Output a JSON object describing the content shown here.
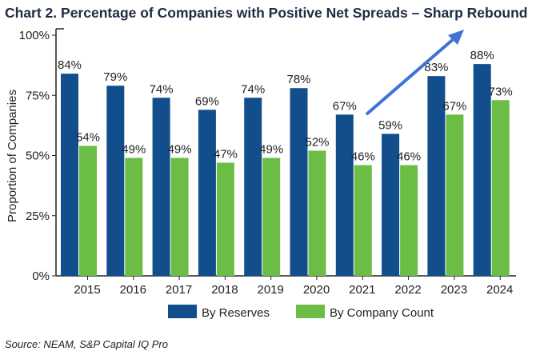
{
  "chart_data": {
    "type": "bar",
    "title": "Chart 2. Percentage of Companies with Positive Net Spreads – Sharp Rebound",
    "ylabel": "Proportion of Companies",
    "xlabel": "",
    "ylim": [
      0,
      100
    ],
    "yticks": [
      "0%",
      "25%",
      "50%",
      "75%",
      "100%"
    ],
    "categories": [
      "2015",
      "2016",
      "2017",
      "2018",
      "2019",
      "2020",
      "2021",
      "2022",
      "2023",
      "2024"
    ],
    "series": [
      {
        "name": "By Reserves",
        "color": "#124e8c",
        "values": [
          84,
          79,
          74,
          69,
          74,
          78,
          67,
          59,
          83,
          88
        ]
      },
      {
        "name": "By Company Count",
        "color": "#6bbd45",
        "values": [
          54,
          49,
          49,
          47,
          49,
          52,
          46,
          46,
          67,
          73
        ]
      }
    ],
    "annotation": "upward arrow (2021 to 2023-2024)",
    "arrow_color": "#3f74d6",
    "grid": false,
    "legend": "bottom"
  },
  "source": "Source: NEAM, S&P Capital IQ Pro"
}
